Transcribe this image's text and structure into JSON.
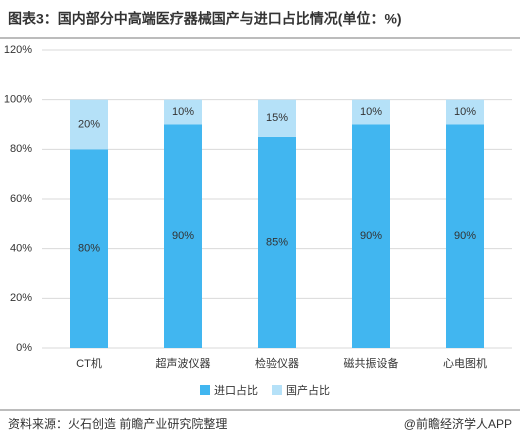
{
  "chart_data": {
    "type": "stacked_bar",
    "title": "图表3：国内部分中高端医疗器械国产与进口占比情况(单位：%)",
    "categories": [
      "CT机",
      "超声波仪器",
      "检验仪器",
      "磁共振设备",
      "心电图机"
    ],
    "series": [
      {
        "name": "进口占比",
        "color": "#41b6f0",
        "values": [
          80,
          90,
          85,
          90,
          90
        ],
        "value_labels": [
          "80%",
          "90%",
          "85%",
          "90%",
          "90%"
        ]
      },
      {
        "name": "国产占比",
        "color": "#b5e1f8",
        "values": [
          20,
          10,
          15,
          10,
          10
        ],
        "value_labels": [
          "20%",
          "10%",
          "15%",
          "10%",
          "10%"
        ]
      }
    ],
    "ylim": [
      0,
      120
    ],
    "yticks": [
      {
        "value": 0,
        "label": "0%"
      },
      {
        "value": 20,
        "label": "20%"
      },
      {
        "value": 40,
        "label": "40%"
      },
      {
        "value": 60,
        "label": "60%"
      },
      {
        "value": 80,
        "label": "80%"
      },
      {
        "value": 100,
        "label": "100%"
      },
      {
        "value": 120,
        "label": "120%"
      }
    ],
    "grid": true,
    "legend": "bottom",
    "source": "资料来源：火石创造 前瞻产业研究院整理",
    "credit": "@前瞻经济学人APP"
  }
}
